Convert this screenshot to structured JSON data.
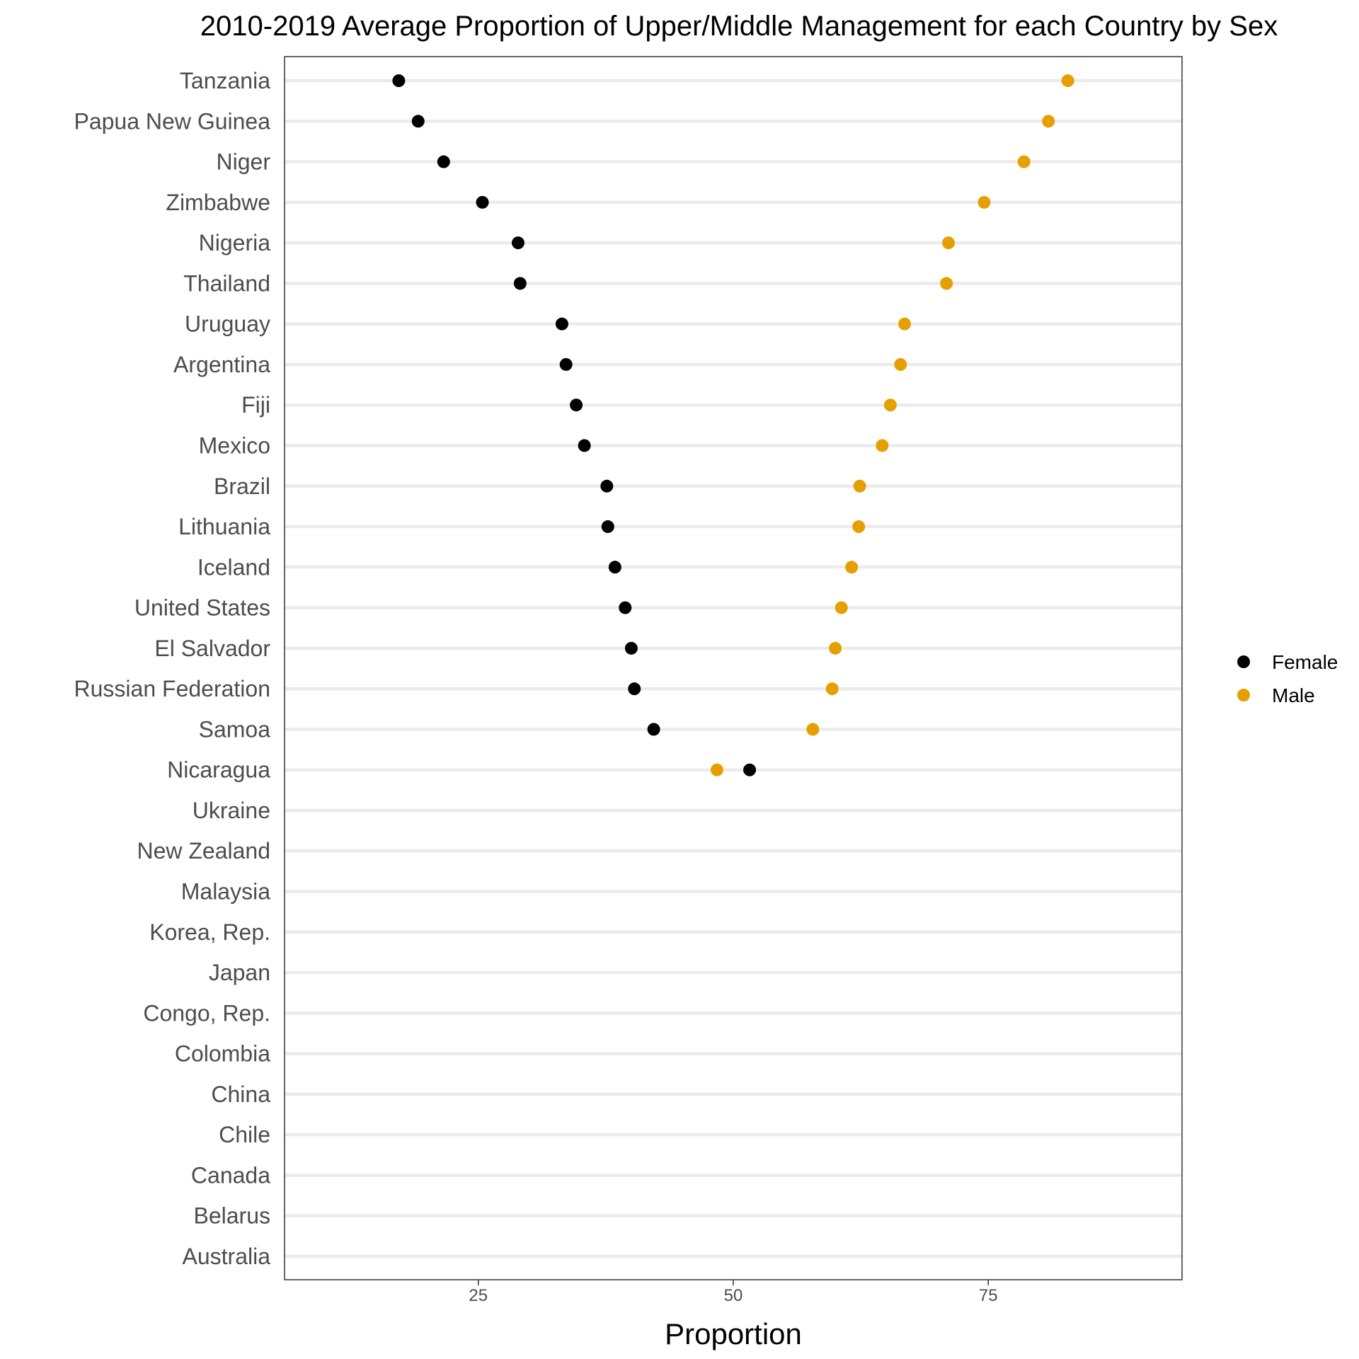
{
  "chart_data": {
    "type": "scatter",
    "title": "2010-2019 Average Proportion of Upper/Middle Management for each Country by Sex",
    "xlabel": "Proportion",
    "ylabel": "",
    "xlim": [
      6,
      94
    ],
    "xticks": [
      "25",
      "50",
      "75"
    ],
    "grid": "horizontal",
    "legend_position": "right",
    "categories": [
      "Tanzania",
      "Papua New Guinea",
      "Niger",
      "Zimbabwe",
      "Nigeria",
      "Thailand",
      "Uruguay",
      "Argentina",
      "Fiji",
      "Mexico",
      "Brazil",
      "Lithuania",
      "Iceland",
      "United States",
      "El Salvador",
      "Russian Federation",
      "Samoa",
      "Nicaragua",
      "Ukraine",
      "New Zealand",
      "Malaysia",
      "Korea, Rep.",
      "Japan",
      "Congo, Rep.",
      "Colombia",
      "China",
      "Chile",
      "Canada",
      "Belarus",
      "Australia"
    ],
    "series": [
      {
        "name": "Female",
        "color": "#000000",
        "values": [
          17.2,
          19.1,
          21.6,
          25.4,
          28.9,
          29.1,
          33.2,
          33.6,
          34.6,
          35.4,
          37.6,
          37.7,
          38.4,
          39.4,
          40.0,
          40.3,
          42.2,
          51.6,
          null,
          null,
          null,
          null,
          null,
          null,
          null,
          null,
          null,
          null,
          null,
          null
        ]
      },
      {
        "name": "Male",
        "color": "#E69F00",
        "values": [
          82.8,
          80.9,
          78.5,
          74.6,
          71.1,
          70.9,
          66.8,
          66.4,
          65.4,
          64.6,
          62.4,
          62.3,
          61.6,
          60.6,
          60.0,
          59.7,
          57.8,
          48.4,
          null,
          null,
          null,
          null,
          null,
          null,
          null,
          null,
          null,
          null,
          null,
          null
        ]
      }
    ]
  }
}
